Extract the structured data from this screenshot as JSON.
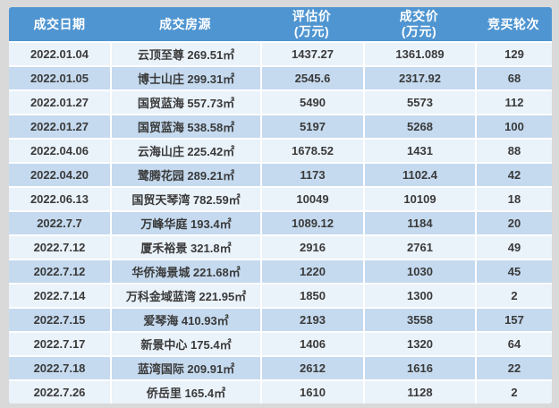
{
  "chart_data": {
    "type": "table",
    "title": "",
    "columns": [
      {
        "label": "成交日期",
        "sublabel": ""
      },
      {
        "label": "成交房源",
        "sublabel": ""
      },
      {
        "label": "评估价",
        "sublabel": "(万元)"
      },
      {
        "label": "成交价",
        "sublabel": "(万元)"
      },
      {
        "label": "竞买轮次",
        "sublabel": ""
      }
    ],
    "rows": [
      [
        "2022.01.04",
        "云顶至尊 269.51㎡",
        "1437.27",
        "1361.089",
        "129"
      ],
      [
        "2022.01.05",
        "博士山庄 299.31㎡",
        "2545.6",
        "2317.92",
        "68"
      ],
      [
        "2022.01.27",
        "国贸蓝海 557.73㎡",
        "5490",
        "5573",
        "112"
      ],
      [
        "2022.01.27",
        "国贸蓝海 538.58㎡",
        "5197",
        "5268",
        "100"
      ],
      [
        "2022.04.06",
        "云海山庄 225.42㎡",
        "1678.52",
        "1431",
        "88"
      ],
      [
        "2022.04.20",
        "鹭腾花园 289.21㎡",
        "1173",
        "1102.4",
        "42"
      ],
      [
        "2022.06.13",
        "国贸天琴湾 782.59㎡",
        "10049",
        "10109",
        "18"
      ],
      [
        "2022.7.7",
        "万峰华庭 193.4㎡",
        "1089.12",
        "1184",
        "20"
      ],
      [
        "2022.7.12",
        "厦禾裕景 321.8㎡",
        "2916",
        "2761",
        "49"
      ],
      [
        "2022.7.12",
        "华侨海景城 221.68㎡",
        "1220",
        "1030",
        "45"
      ],
      [
        "2022.7.14",
        "万科金域蓝湾 221.95㎡",
        "1850",
        "1300",
        "2"
      ],
      [
        "2022.7.15",
        "爱琴海 410.93㎡",
        "2193",
        "3558",
        "157"
      ],
      [
        "2022.7.17",
        "新景中心 175.4㎡",
        "1406",
        "1320",
        "64"
      ],
      [
        "2022.7.18",
        "蓝湾国际 209.91㎡",
        "2612",
        "1616",
        "22"
      ],
      [
        "2022.7.26",
        "侨岳里 165.4㎡",
        "1610",
        "1128",
        "2"
      ]
    ]
  },
  "colors": {
    "header_bg": "#4F95D1",
    "header_text": "#FFFFFF",
    "row_light": "#EAF2FA",
    "row_dark": "#C5DAEF",
    "body_text": "#3A3A3A",
    "border_gray": "#D9D9D9"
  }
}
